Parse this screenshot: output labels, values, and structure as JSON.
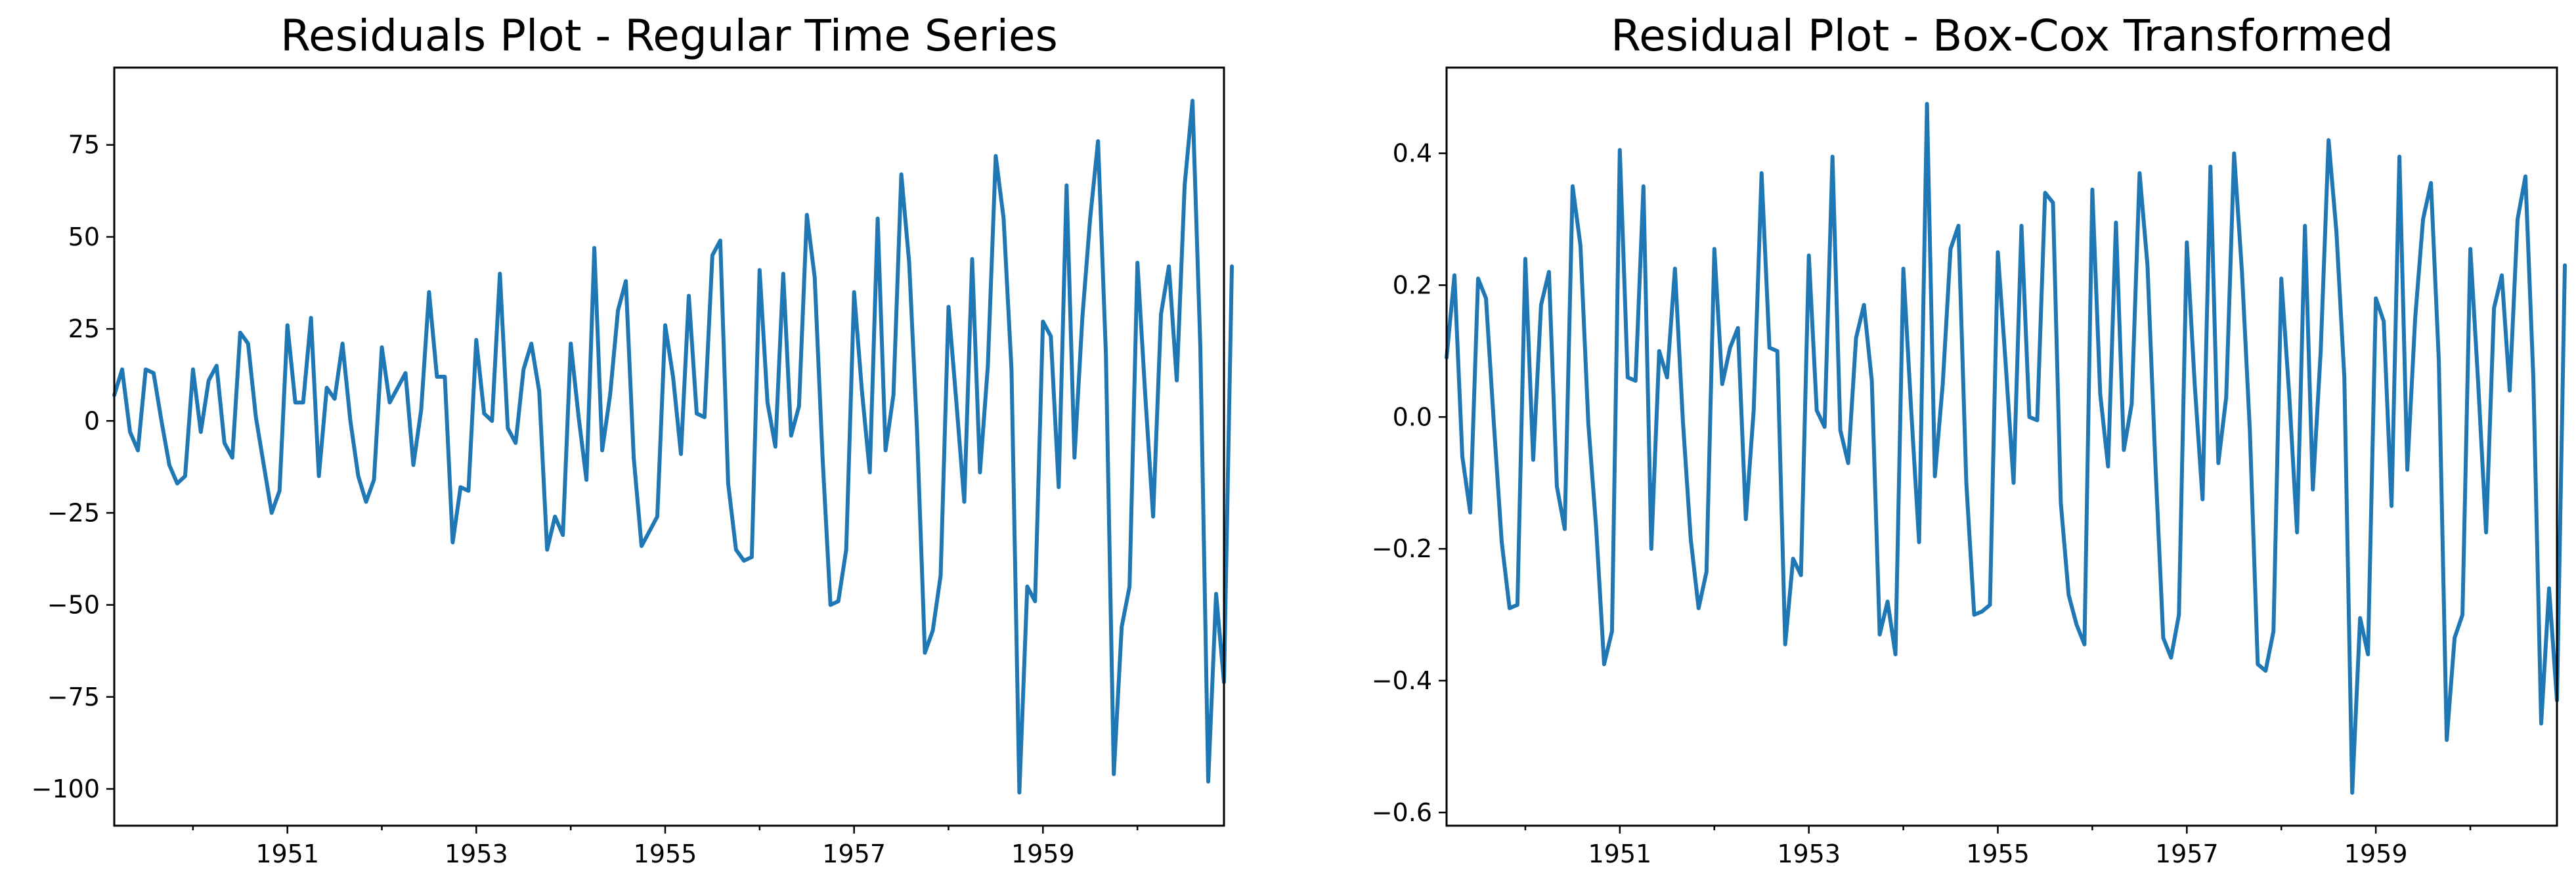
{
  "colors": {
    "series": "#1f77b4",
    "axis": "#000000",
    "background": "#ffffff"
  },
  "chart_data": [
    {
      "type": "line",
      "title": "Residuals Plot - Regular Time Series",
      "xlabel": "",
      "ylabel": "",
      "x_start": "1949-03",
      "x_end": "1960-12",
      "xlim": [
        "1949-03",
        "1960-12"
      ],
      "ylim": [
        -110,
        96
      ],
      "yticks": [
        -100,
        -75,
        -50,
        -25,
        0,
        25,
        50,
        75
      ],
      "ytick_labels": [
        "−100",
        "−75",
        "−50",
        "−25",
        "0",
        "25",
        "50",
        "75"
      ],
      "xticks": [
        "1951-01",
        "1953-01",
        "1955-01",
        "1957-01",
        "1959-01"
      ],
      "xtick_labels": [
        "1951",
        "1953",
        "1955",
        "1957",
        "1959"
      ],
      "minor_xticks": [
        "1950-01",
        "1952-01",
        "1954-01",
        "1956-01",
        "1958-01",
        "1960-01"
      ],
      "grid": false,
      "legend": "none",
      "series": [
        {
          "values": [
            7,
            14,
            -3,
            -8,
            14,
            13,
            0,
            -12,
            -17,
            -15,
            14,
            -3,
            11,
            15,
            -6,
            -10,
            24,
            21,
            1,
            -12,
            -25,
            -19,
            26,
            5,
            5,
            28,
            -15,
            9,
            6,
            21,
            0,
            -15,
            -22,
            -16,
            20,
            5,
            9,
            13,
            -12,
            3,
            35,
            12,
            12,
            -33,
            -18,
            -19,
            22,
            2,
            0,
            40,
            -2,
            -6,
            14,
            21,
            8,
            -35,
            -26,
            -31,
            21,
            1,
            -16,
            47,
            -8,
            7,
            30,
            38,
            -10,
            -34,
            -30,
            -26,
            26,
            12,
            -9,
            34,
            2,
            1,
            45,
            49,
            -17,
            -35,
            -38,
            -37,
            41,
            5,
            -7,
            40,
            -4,
            4,
            56,
            39,
            -10,
            -50,
            -49,
            -35,
            35,
            8,
            -14,
            55,
            -8,
            7,
            67,
            43,
            -3,
            -63,
            -57,
            -42,
            31,
            5,
            -22,
            44,
            -14,
            15,
            72,
            55,
            14,
            -101,
            -45,
            -49,
            27,
            23,
            -18,
            64,
            -10,
            28,
            55,
            76,
            18,
            -96,
            -56,
            -45,
            43,
            7,
            -26,
            29,
            42,
            11,
            64,
            87,
            20,
            -98,
            -47,
            -71,
            42
          ]
        }
      ]
    },
    {
      "type": "line",
      "title": "Residual Plot - Box-Cox Transformed",
      "xlabel": "",
      "ylabel": "",
      "x_start": "1949-03",
      "x_end": "1960-12",
      "xlim": [
        "1949-03",
        "1960-12"
      ],
      "ylim": [
        -0.62,
        0.53
      ],
      "yticks": [
        -0.6,
        -0.4,
        -0.2,
        0.0,
        0.2,
        0.4
      ],
      "ytick_labels": [
        "−0.6",
        "−0.4",
        "−0.2",
        "0.0",
        "0.2",
        "0.4"
      ],
      "xticks": [
        "1951-01",
        "1953-01",
        "1955-01",
        "1957-01",
        "1959-01"
      ],
      "xtick_labels": [
        "1951",
        "1953",
        "1955",
        "1957",
        "1959"
      ],
      "minor_xticks": [
        "1950-01",
        "1952-01",
        "1954-01",
        "1956-01",
        "1958-01",
        "1960-01"
      ],
      "grid": false,
      "legend": "none",
      "series": [
        {
          "values": [
            0.09,
            0.215,
            -0.06,
            -0.145,
            0.21,
            0.18,
            -0.01,
            -0.19,
            -0.29,
            -0.285,
            0.24,
            -0.065,
            0.17,
            0.22,
            -0.105,
            -0.17,
            0.35,
            0.26,
            -0.01,
            -0.17,
            -0.375,
            -0.325,
            0.405,
            0.06,
            0.055,
            0.35,
            -0.2,
            0.1,
            0.06,
            0.225,
            -0.005,
            -0.185,
            -0.29,
            -0.235,
            0.255,
            0.05,
            0.105,
            0.135,
            -0.155,
            0.01,
            0.37,
            0.105,
            0.1,
            -0.345,
            -0.215,
            -0.24,
            0.245,
            0.01,
            -0.015,
            0.395,
            -0.02,
            -0.07,
            0.12,
            0.17,
            0.055,
            -0.33,
            -0.28,
            -0.36,
            0.225,
            0.01,
            -0.19,
            0.475,
            -0.09,
            0.05,
            0.255,
            0.29,
            -0.1,
            -0.3,
            -0.295,
            -0.285,
            0.25,
            0.08,
            -0.1,
            0.29,
            0.0,
            -0.005,
            0.34,
            0.325,
            -0.13,
            -0.27,
            -0.315,
            -0.345,
            0.345,
            0.035,
            -0.075,
            0.295,
            -0.05,
            0.02,
            0.37,
            0.23,
            -0.07,
            -0.335,
            -0.365,
            -0.3,
            0.265,
            0.05,
            -0.125,
            0.38,
            -0.07,
            0.03,
            0.4,
            0.22,
            -0.02,
            -0.375,
            -0.385,
            -0.325,
            0.21,
            0.035,
            -0.175,
            0.29,
            -0.11,
            0.1,
            0.42,
            0.28,
            0.06,
            -0.57,
            -0.305,
            -0.36,
            0.18,
            0.145,
            -0.135,
            0.395,
            -0.08,
            0.15,
            0.3,
            0.355,
            0.085,
            -0.49,
            -0.335,
            -0.3,
            0.255,
            0.05,
            -0.175,
            0.165,
            0.215,
            0.04,
            0.3,
            0.365,
            0.06,
            -0.465,
            -0.26,
            -0.43,
            0.23
          ]
        }
      ]
    }
  ]
}
